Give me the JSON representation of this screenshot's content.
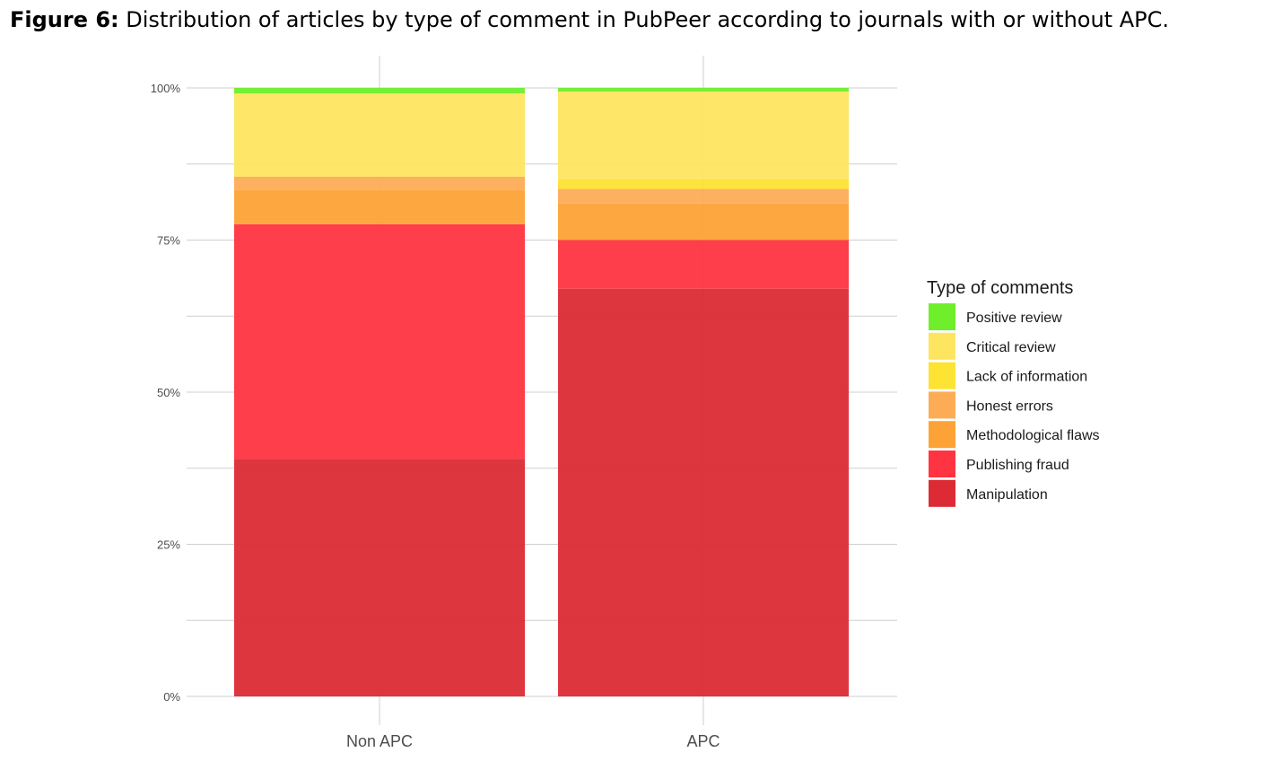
{
  "caption": {
    "label": "Figure 6:",
    "text": " Distribution of articles by type of comment in PubPeer according to journals with or without APC."
  },
  "chart_data": {
    "type": "bar",
    "stacked": true,
    "normalized": true,
    "categories": [
      "Non APC",
      "APC"
    ],
    "ylim": [
      0,
      100
    ],
    "y_ticks": [
      0,
      25,
      50,
      75,
      100
    ],
    "y_tick_labels": [
      "0%",
      "25%",
      "50%",
      "75%",
      "100%"
    ],
    "grid": true,
    "legend": {
      "title": "Type of comments",
      "position": "right"
    },
    "series": [
      {
        "name": "Manipulation",
        "color": "#dc2b34",
        "values": [
          39.0,
          67.0
        ]
      },
      {
        "name": "Publishing fraud",
        "color": "#fe3440",
        "values": [
          38.6,
          8.0
        ]
      },
      {
        "name": "Methodological flaws",
        "color": "#fda236",
        "values": [
          5.6,
          6.0
        ]
      },
      {
        "name": "Honest errors",
        "color": "#fdac56",
        "values": [
          2.2,
          2.4
        ]
      },
      {
        "name": "Lack of information",
        "color": "#fde332",
        "values": [
          0.0,
          1.6
        ]
      },
      {
        "name": "Critical review",
        "color": "#fde560",
        "values": [
          13.7,
          14.4
        ]
      },
      {
        "name": "Positive review",
        "color": "#6fee2c",
        "values": [
          0.9,
          0.6
        ]
      }
    ],
    "legend_order": [
      "Positive review",
      "Critical review",
      "Lack of information",
      "Honest errors",
      "Methodological flaws",
      "Publishing fraud",
      "Manipulation"
    ]
  }
}
